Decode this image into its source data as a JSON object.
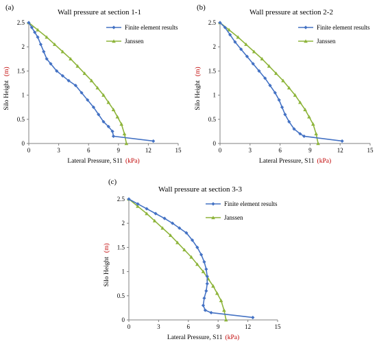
{
  "colors": {
    "fe": "#4472c4",
    "janssen": "#8db43a",
    "unit": "#c00000",
    "axis": "#808080",
    "text": "#000000"
  },
  "chart_data": [
    {
      "type": "line",
      "panel_label": "(a)",
      "title": "Wall pressure at section 1-1",
      "xlabel": "Lateral Pressure,  S11",
      "xlabel_unit": "(kPa)",
      "ylabel": "Silo  Height",
      "ylabel_unit": "(m)",
      "xlim": [
        0,
        15
      ],
      "ylim": [
        0,
        2.5
      ],
      "xticks": [
        0,
        3,
        6,
        9,
        12,
        15
      ],
      "yticks": [
        0,
        0.5,
        1,
        1.5,
        2,
        2.5
      ],
      "xtick_labels": [
        "0",
        "3",
        "6",
        "9",
        "12",
        "15"
      ],
      "ytick_labels": [
        "0",
        "0.5",
        "1",
        "1.5",
        "2",
        "2.5"
      ],
      "grid": false,
      "legend": "top-right",
      "series": [
        {
          "name": "Finite element results",
          "x": [
            0,
            0.3,
            0.6,
            0.9,
            1.2,
            1.5,
            1.8,
            2.2,
            2.8,
            3.4,
            4.0,
            4.7,
            5.3,
            5.9,
            6.5,
            7.0,
            7.5,
            8.0,
            8.4,
            8.5,
            12.5
          ],
          "y": [
            2.5,
            2.4,
            2.3,
            2.2,
            2.05,
            1.9,
            1.75,
            1.65,
            1.5,
            1.4,
            1.3,
            1.2,
            1.05,
            0.9,
            0.75,
            0.6,
            0.45,
            0.35,
            0.25,
            0.15,
            0.05
          ]
        },
        {
          "name": "Janssen",
          "x": [
            0,
            0.9,
            1.8,
            2.6,
            3.4,
            4.2,
            4.9,
            5.6,
            6.3,
            6.9,
            7.5,
            8.0,
            8.5,
            8.9,
            9.3,
            9.6,
            9.8
          ],
          "y": [
            2.5,
            2.35,
            2.2,
            2.05,
            1.9,
            1.75,
            1.6,
            1.45,
            1.3,
            1.15,
            1.0,
            0.85,
            0.7,
            0.55,
            0.4,
            0.2,
            0.0
          ]
        }
      ]
    },
    {
      "type": "line",
      "panel_label": "(b)",
      "title": "Wall pressure at section 2-2",
      "xlabel": "Lateral Pressure,  S11",
      "xlabel_unit": "(kPa)",
      "ylabel": "Silo  Height",
      "ylabel_unit": "(m)",
      "xlim": [
        0,
        15
      ],
      "ylim": [
        0,
        2.5
      ],
      "xticks": [
        0,
        3,
        6,
        9,
        12,
        15
      ],
      "yticks": [
        0,
        0.5,
        1,
        1.5,
        2,
        2.5
      ],
      "xtick_labels": [
        "0",
        "3",
        "6",
        "9",
        "12",
        "15"
      ],
      "ytick_labels": [
        "0",
        "0.5",
        "1",
        "1.5",
        "2",
        "2.5"
      ],
      "grid": false,
      "legend": "top-right",
      "series": [
        {
          "name": "Finite element results",
          "x": [
            0,
            0.5,
            1.0,
            1.5,
            2.1,
            2.7,
            3.3,
            3.9,
            4.5,
            5.0,
            5.5,
            5.9,
            6.2,
            6.5,
            6.9,
            7.4,
            8.0,
            8.4,
            12.2
          ],
          "y": [
            2.5,
            2.4,
            2.25,
            2.1,
            1.95,
            1.8,
            1.65,
            1.5,
            1.35,
            1.2,
            1.05,
            0.9,
            0.75,
            0.6,
            0.45,
            0.3,
            0.2,
            0.15,
            0.05
          ]
        },
        {
          "name": "Janssen",
          "x": [
            0,
            0.9,
            1.8,
            2.6,
            3.4,
            4.2,
            4.9,
            5.6,
            6.3,
            6.9,
            7.5,
            8.0,
            8.5,
            8.9,
            9.3,
            9.6,
            9.8
          ],
          "y": [
            2.5,
            2.35,
            2.2,
            2.05,
            1.9,
            1.75,
            1.6,
            1.45,
            1.3,
            1.15,
            1.0,
            0.85,
            0.7,
            0.55,
            0.4,
            0.2,
            0.0
          ]
        }
      ]
    },
    {
      "type": "line",
      "panel_label": "(c)",
      "title": "Wall pressure at section 3-3",
      "xlabel": "Lateral Pressure,  S11",
      "xlabel_unit": "(kPa)",
      "ylabel": "Silo  Height",
      "ylabel_unit": "(m)",
      "xlim": [
        0,
        15
      ],
      "ylim": [
        0,
        2.5
      ],
      "xticks": [
        0,
        3,
        6,
        9,
        12,
        15
      ],
      "yticks": [
        0,
        0.5,
        1,
        1.5,
        2,
        2.5
      ],
      "xtick_labels": [
        "0",
        "3",
        "6",
        "9",
        "12",
        "15"
      ],
      "ytick_labels": [
        "0",
        "0.5",
        "1",
        "1.5",
        "2",
        "2.5"
      ],
      "grid": false,
      "legend": "top-right",
      "series": [
        {
          "name": "Finite element results",
          "x": [
            0,
            0.9,
            1.8,
            2.7,
            3.6,
            4.4,
            5.1,
            5.8,
            6.4,
            6.9,
            7.3,
            7.6,
            7.8,
            7.9,
            7.9,
            7.8,
            7.6,
            7.5,
            7.7,
            8.3,
            12.5
          ],
          "y": [
            2.5,
            2.4,
            2.3,
            2.2,
            2.1,
            2.0,
            1.9,
            1.8,
            1.65,
            1.5,
            1.35,
            1.2,
            1.05,
            0.9,
            0.75,
            0.6,
            0.45,
            0.3,
            0.2,
            0.15,
            0.05
          ]
        },
        {
          "name": "Janssen",
          "x": [
            0,
            0.9,
            1.8,
            2.6,
            3.4,
            4.2,
            4.9,
            5.6,
            6.3,
            6.9,
            7.5,
            8.0,
            8.5,
            8.9,
            9.3,
            9.6,
            9.8
          ],
          "y": [
            2.5,
            2.35,
            2.2,
            2.05,
            1.9,
            1.75,
            1.6,
            1.45,
            1.3,
            1.15,
            1.0,
            0.85,
            0.7,
            0.55,
            0.4,
            0.2,
            0.0
          ]
        }
      ]
    }
  ]
}
